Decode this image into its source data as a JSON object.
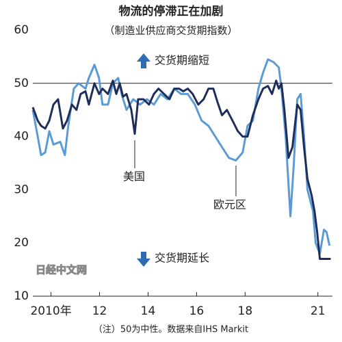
{
  "chart_data": {
    "type": "line",
    "title": "物流的停滞正在加剧",
    "subtitle": "（制造业供应商交货期指数）",
    "annotations": {
      "up": "交货期缩短",
      "down": "交货期延长",
      "us": "美国",
      "eu": "欧元区"
    },
    "note": "（注）50为中性。数据来自IHS Markit",
    "watermark": "日经中文网",
    "xlim": [
      2009.25,
      2021.6
    ],
    "xticks": [
      {
        "value": 2010,
        "label": "2010年"
      },
      {
        "value": 2012,
        "label": "12"
      },
      {
        "value": 2014,
        "label": "14"
      },
      {
        "value": 2016,
        "label": "16"
      },
      {
        "value": 2018,
        "label": "18"
      },
      {
        "value": 2021,
        "label": "21"
      }
    ],
    "ylim": [
      10,
      60
    ],
    "yticks": [
      10,
      20,
      30,
      40,
      50,
      60
    ],
    "hline": 50,
    "series": [
      {
        "name": "欧元区",
        "color": "#5b9bd5",
        "x": [
          2009.25,
          2009.59,
          2009.76,
          2009.93,
          2010.1,
          2010.38,
          2010.57,
          2010.71,
          2010.94,
          2011.14,
          2011.42,
          2011.56,
          2011.79,
          2011.98,
          2012.12,
          2012.35,
          2012.55,
          2012.77,
          2012.91,
          2013.11,
          2013.39,
          2013.67,
          2013.95,
          2014.24,
          2014.52,
          2014.8,
          2015.08,
          2015.36,
          2015.64,
          2015.93,
          2016.21,
          2016.49,
          2016.77,
          2017.05,
          2017.33,
          2017.62,
          2017.9,
          2018.1,
          2018.32,
          2018.55,
          2018.74,
          2018.94,
          2019.17,
          2019.39,
          2019.5,
          2019.67,
          2019.87,
          2020.01,
          2020.15,
          2020.29,
          2020.43,
          2020.57,
          2020.8,
          2020.91,
          2021.08,
          2021.25,
          2021.36,
          2021.48
        ],
        "values": [
          45,
          36.5,
          37,
          41,
          38.5,
          39,
          36.5,
          42,
          49,
          50,
          49,
          51,
          53.5,
          51,
          46,
          46,
          50,
          51,
          48,
          45,
          47,
          46,
          47,
          46,
          48,
          47,
          49,
          48,
          48,
          46,
          43,
          42,
          40,
          38,
          36,
          35.5,
          37,
          42,
          43,
          49,
          52,
          54.5,
          54,
          53,
          49,
          40,
          25,
          35,
          47,
          48,
          40,
          30,
          26,
          20,
          18,
          22.5,
          22,
          19.5
        ]
      },
      {
        "name": "美国",
        "color": "#1f2d5a",
        "x": [
          2009.25,
          2009.45,
          2009.59,
          2009.76,
          2009.93,
          2010.1,
          2010.29,
          2010.49,
          2010.66,
          2010.86,
          2011.05,
          2011.22,
          2011.42,
          2011.56,
          2011.79,
          2011.98,
          2012.12,
          2012.35,
          2012.55,
          2012.69,
          2012.83,
          2012.97,
          2013.11,
          2013.31,
          2013.45,
          2013.59,
          2013.81,
          2014.04,
          2014.24,
          2014.43,
          2014.66,
          2014.88,
          2015.08,
          2015.28,
          2015.45,
          2015.64,
          2015.84,
          2016.07,
          2016.29,
          2016.49,
          2016.69,
          2016.86,
          2017.05,
          2017.25,
          2017.48,
          2017.7,
          2017.9,
          2018.1,
          2018.32,
          2018.55,
          2018.74,
          2018.94,
          2019.11,
          2019.28,
          2019.39,
          2019.5,
          2019.62,
          2019.79,
          2019.95,
          2020.15,
          2020.29,
          2020.43,
          2020.57,
          2020.74,
          2020.86,
          2020.97,
          2021.08,
          2021.25,
          2021.42,
          2021.53
        ],
        "values": [
          45.5,
          43,
          42,
          41.5,
          43,
          46,
          47,
          41.5,
          43,
          46,
          45,
          48,
          48.5,
          46,
          50,
          48,
          49,
          48,
          50.5,
          48,
          50,
          47.5,
          48,
          45,
          40.5,
          47,
          47,
          46,
          48,
          49,
          48,
          47,
          49,
          49,
          48.5,
          49,
          48,
          46,
          47,
          49,
          49,
          46.5,
          44,
          45,
          43,
          41,
          40,
          40,
          44,
          47,
          49,
          49.5,
          48,
          50.5,
          49,
          50,
          45,
          36,
          38,
          46,
          45,
          38,
          32,
          29,
          26,
          22,
          17,
          17,
          17,
          17
        ]
      }
    ]
  }
}
